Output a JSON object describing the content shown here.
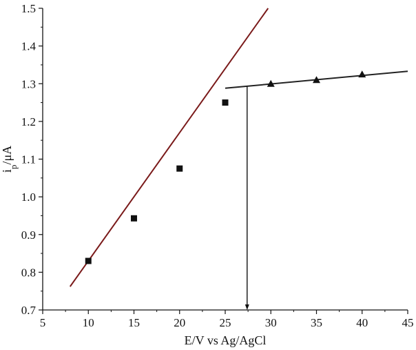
{
  "chart_data": {
    "type": "scatter",
    "xlabel": "E/V vs Ag/AgCl",
    "ylabel_main": "i",
    "ylabel_sub": "p",
    "ylabel_unit": "/μA",
    "xlim": [
      5,
      45
    ],
    "ylim": [
      0.7,
      1.5
    ],
    "xticks": [
      "5",
      "10",
      "15",
      "20",
      "25",
      "30",
      "35",
      "40",
      "45"
    ],
    "yticks": [
      "0.7",
      "0.8",
      "0.9",
      "1.0",
      "1.1",
      "1.2",
      "1.3",
      "1.4",
      "1.5"
    ],
    "grid": false,
    "series": [
      {
        "marker": "square",
        "color": "#111111",
        "x": [
          10,
          15,
          20,
          25
        ],
        "y": [
          0.83,
          0.943,
          1.075,
          1.25
        ]
      },
      {
        "marker": "triangle",
        "color": "#111111",
        "x": [
          30,
          35,
          40
        ],
        "y": [
          1.3,
          1.31,
          1.325
        ]
      }
    ],
    "fit_lines": [
      {
        "color": "#7a1a1a",
        "x": [
          8,
          29.7
        ],
        "y": [
          0.762,
          1.5
        ]
      },
      {
        "color": "#222222",
        "x": [
          25,
          45
        ],
        "y": [
          1.288,
          1.333
        ]
      }
    ],
    "drop_line": {
      "x": 27.4,
      "y_from": 1.293,
      "y_to": 0.7,
      "color": "#111111"
    }
  }
}
